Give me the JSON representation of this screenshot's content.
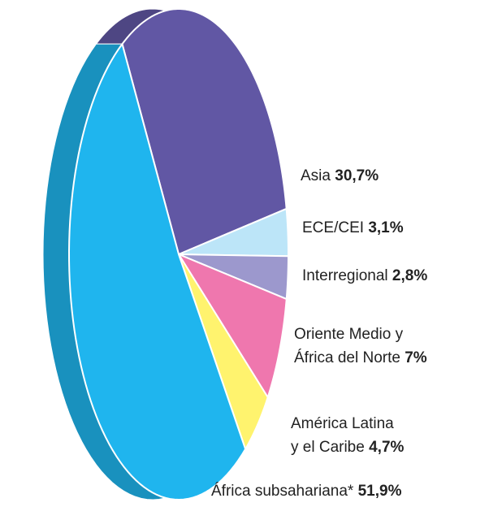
{
  "chart_data": {
    "type": "pie",
    "categories": [
      "Asia",
      "ECE/CEI",
      "Interregional",
      "Oriente Medio y\nÁfrica del Norte",
      "América Latina\ny el Caribe",
      "África subsahariana*"
    ],
    "values": [
      30.7,
      3.1,
      2.8,
      7,
      4.7,
      51.9
    ],
    "value_labels": [
      "30,7%",
      "3,1%",
      "2,8%",
      "7%",
      "4,7%",
      "51,9%"
    ],
    "colors": [
      "#6157a4",
      "#bce5f8",
      "#9c98cd",
      "#ef77ae",
      "#fff36e",
      "#1fb5ee"
    ]
  }
}
